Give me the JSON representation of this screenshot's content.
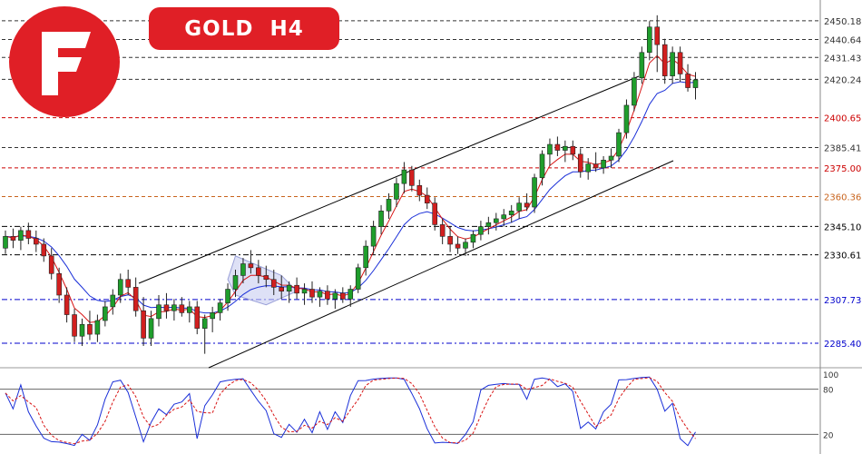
{
  "header": {
    "symbol": "GOLD",
    "timeframe": "H4",
    "badge_color": "#e01f26"
  },
  "logo": {
    "icon": "brand-f-logo-icon",
    "color": "#e01f26"
  },
  "chart_data": [
    {
      "type": "candlestick",
      "title": "GOLD H4",
      "ylim": [
        2270,
        2460
      ],
      "price_scale_labels": [
        "2450.18",
        "2440.64",
        "2431.43",
        "2420.24",
        "2400.65",
        "2385.41",
        "2375.00",
        "2360.36",
        "2345.10",
        "2330.61",
        "2307.73",
        "2285.40"
      ],
      "levels": [
        {
          "value": 2450.18,
          "label": "2450.18",
          "color": "#333333",
          "style": "dashed"
        },
        {
          "value": 2440.64,
          "label": "2440.64",
          "color": "#333333",
          "style": "dashed"
        },
        {
          "value": 2431.43,
          "label": "2431.43",
          "color": "#333333",
          "style": "dashed"
        },
        {
          "value": 2420.24,
          "label": "2420.24",
          "color": "#333333",
          "style": "dashed"
        },
        {
          "value": 2400.65,
          "label": "2400.65",
          "color": "#cc0000",
          "style": "dashed"
        },
        {
          "value": 2385.41,
          "label": "2385.41",
          "color": "#333333",
          "style": "dashed"
        },
        {
          "value": 2375.0,
          "label": "2375.00",
          "color": "#cc0000",
          "style": "dashed"
        },
        {
          "value": 2360.36,
          "label": "2360.36",
          "color": "#c8641e",
          "style": "dashed"
        },
        {
          "value": 2345.1,
          "label": "2345.10",
          "color": "#000000",
          "style": "dashdot"
        },
        {
          "value": 2330.61,
          "label": "2330.61",
          "color": "#000000",
          "style": "dashdot"
        },
        {
          "value": 2307.73,
          "label": "2307.73",
          "color": "#0000cc",
          "style": "dashdot"
        },
        {
          "value": 2285.4,
          "label": "2285.40",
          "color": "#0000cc",
          "style": "dashdot"
        }
      ],
      "candles": [
        [
          2334,
          2343,
          2331,
          2340
        ],
        [
          2340,
          2344,
          2334,
          2338
        ],
        [
          2338,
          2345,
          2333,
          2343
        ],
        [
          2343,
          2347,
          2336,
          2339
        ],
        [
          2339,
          2343,
          2332,
          2336
        ],
        [
          2336,
          2339,
          2327,
          2330
        ],
        [
          2330,
          2334,
          2318,
          2321
        ],
        [
          2321,
          2324,
          2306,
          2310
        ],
        [
          2310,
          2314,
          2296,
          2300
        ],
        [
          2300,
          2303,
          2286,
          2289
        ],
        [
          2289,
          2298,
          2284,
          2295
        ],
        [
          2295,
          2302,
          2287,
          2290
        ],
        [
          2290,
          2300,
          2286,
          2297
        ],
        [
          2297,
          2307,
          2294,
          2304
        ],
        [
          2304,
          2313,
          2300,
          2310
        ],
        [
          2310,
          2321,
          2306,
          2318
        ],
        [
          2318,
          2323,
          2310,
          2314
        ],
        [
          2314,
          2319,
          2299,
          2302
        ],
        [
          2302,
          2309,
          2284,
          2288
        ],
        [
          2288,
          2302,
          2284,
          2298
        ],
        [
          2298,
          2310,
          2294,
          2305
        ],
        [
          2305,
          2311,
          2298,
          2302
        ],
        [
          2302,
          2308,
          2297,
          2305
        ],
        [
          2305,
          2309,
          2299,
          2301
        ],
        [
          2301,
          2307,
          2296,
          2304
        ],
        [
          2304,
          2307,
          2290,
          2293
        ],
        [
          2293,
          2300,
          2280,
          2298
        ],
        [
          2298,
          2304,
          2291,
          2301
        ],
        [
          2301,
          2308,
          2297,
          2306
        ],
        [
          2306,
          2316,
          2302,
          2313
        ],
        [
          2313,
          2323,
          2309,
          2320
        ],
        [
          2320,
          2329,
          2316,
          2326
        ],
        [
          2326,
          2333,
          2321,
          2324
        ],
        [
          2324,
          2328,
          2316,
          2320
        ],
        [
          2320,
          2325,
          2314,
          2318
        ],
        [
          2318,
          2323,
          2310,
          2314
        ],
        [
          2314,
          2320,
          2308,
          2312
        ],
        [
          2312,
          2317,
          2306,
          2315
        ],
        [
          2315,
          2319,
          2308,
          2311
        ],
        [
          2311,
          2316,
          2305,
          2313
        ],
        [
          2313,
          2317,
          2306,
          2309
        ],
        [
          2309,
          2314,
          2304,
          2312
        ],
        [
          2312,
          2315,
          2305,
          2308
        ],
        [
          2308,
          2313,
          2303,
          2311
        ],
        [
          2311,
          2314,
          2306,
          2308
        ],
        [
          2308,
          2315,
          2304,
          2313
        ],
        [
          2313,
          2326,
          2311,
          2324
        ],
        [
          2324,
          2338,
          2320,
          2335
        ],
        [
          2335,
          2348,
          2331,
          2345
        ],
        [
          2345,
          2356,
          2341,
          2353
        ],
        [
          2353,
          2362,
          2349,
          2359
        ],
        [
          2359,
          2370,
          2355,
          2367
        ],
        [
          2367,
          2378,
          2362,
          2374
        ],
        [
          2374,
          2376,
          2363,
          2366
        ],
        [
          2366,
          2369,
          2358,
          2361
        ],
        [
          2361,
          2365,
          2354,
          2357
        ],
        [
          2357,
          2360,
          2343,
          2346
        ],
        [
          2346,
          2349,
          2336,
          2340
        ],
        [
          2340,
          2345,
          2332,
          2336
        ],
        [
          2336,
          2340,
          2331,
          2334
        ],
        [
          2334,
          2339,
          2330,
          2337
        ],
        [
          2337,
          2343,
          2334,
          2341
        ],
        [
          2341,
          2348,
          2338,
          2345
        ],
        [
          2345,
          2350,
          2341,
          2347
        ],
        [
          2347,
          2352,
          2343,
          2349
        ],
        [
          2349,
          2354,
          2345,
          2351
        ],
        [
          2351,
          2356,
          2347,
          2353
        ],
        [
          2353,
          2360,
          2349,
          2357
        ],
        [
          2357,
          2362,
          2353,
          2355
        ],
        [
          2355,
          2372,
          2352,
          2370
        ],
        [
          2370,
          2384,
          2366,
          2382
        ],
        [
          2382,
          2390,
          2376,
          2387
        ],
        [
          2387,
          2391,
          2381,
          2384
        ],
        [
          2384,
          2389,
          2378,
          2386
        ],
        [
          2386,
          2389,
          2379,
          2382
        ],
        [
          2382,
          2385,
          2370,
          2373
        ],
        [
          2373,
          2380,
          2369,
          2377
        ],
        [
          2377,
          2383,
          2373,
          2375
        ],
        [
          2375,
          2381,
          2372,
          2379
        ],
        [
          2379,
          2385,
          2375,
          2381
        ],
        [
          2381,
          2395,
          2378,
          2393
        ],
        [
          2393,
          2410,
          2390,
          2407
        ],
        [
          2407,
          2424,
          2404,
          2421
        ],
        [
          2421,
          2437,
          2418,
          2434
        ],
        [
          2434,
          2450,
          2430,
          2447
        ],
        [
          2447,
          2453,
          2424,
          2438
        ],
        [
          2438,
          2441,
          2418,
          2422
        ],
        [
          2422,
          2437,
          2418,
          2434
        ],
        [
          2434,
          2437,
          2419,
          2423
        ],
        [
          2423,
          2428,
          2414,
          2416
        ],
        [
          2416,
          2424,
          2410,
          2420
        ]
      ],
      "channel": {
        "upper": [
          [
            2300,
            2307
          ],
          [
            2423,
            2358
          ]
        ],
        "lower": [
          [
            2270,
            2270
          ],
          [
            2386,
            2330
          ]
        ]
      },
      "overlays": [
        "EMA fast (red)",
        "EMA slow (blue)"
      ],
      "stochastic": {
        "scale_labels": [
          "100",
          "80",
          "20"
        ],
        "upper_level": 80,
        "lower_level": 20
      }
    }
  ]
}
